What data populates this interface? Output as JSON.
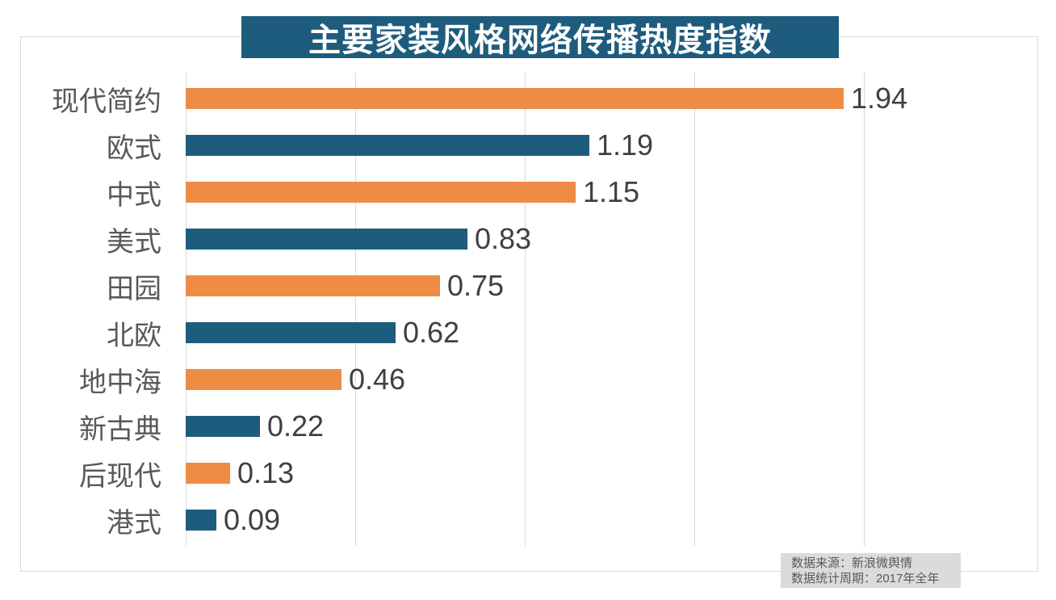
{
  "title": "主要家装风格网络传播热度指数",
  "source_note": {
    "line1": "数据来源：新浪微舆情",
    "line2": "数据统计周期：2017年全年"
  },
  "colors": {
    "title_bg": "#1e5c7d",
    "title_text": "#ffffff",
    "bar_orange": "#ee8c44",
    "bar_blue": "#1e5c7d",
    "grid_line": "#d9d9d9",
    "frame_border": "#d9d9d9",
    "category_text": "#595959",
    "value_text": "#404040",
    "footer_bg": "#dbdbdb",
    "footer_text": "#595959"
  },
  "chart_data": {
    "type": "bar",
    "orientation": "horizontal",
    "title": "主要家装风格网络传播热度指数",
    "categories": [
      "现代简约",
      "欧式",
      "中式",
      "美式",
      "田园",
      "北欧",
      "地中海",
      "新古典",
      "后现代",
      "港式"
    ],
    "values": [
      1.94,
      1.19,
      1.15,
      0.83,
      0.75,
      0.62,
      0.46,
      0.22,
      0.13,
      0.09
    ],
    "value_labels": [
      "1.94",
      "1.19",
      "1.15",
      "0.83",
      "0.75",
      "0.62",
      "0.46",
      "0.22",
      "0.13",
      "0.09"
    ],
    "bar_color_pattern": [
      "orange",
      "blue"
    ],
    "xlim": [
      0,
      2.5
    ],
    "gridline_values": [
      0,
      0.5,
      1.0,
      1.5,
      2.0
    ],
    "xlabel": "",
    "ylabel": "",
    "legend": "none",
    "grid": "vertical-only",
    "value_labels_position": "right-of-bar"
  }
}
